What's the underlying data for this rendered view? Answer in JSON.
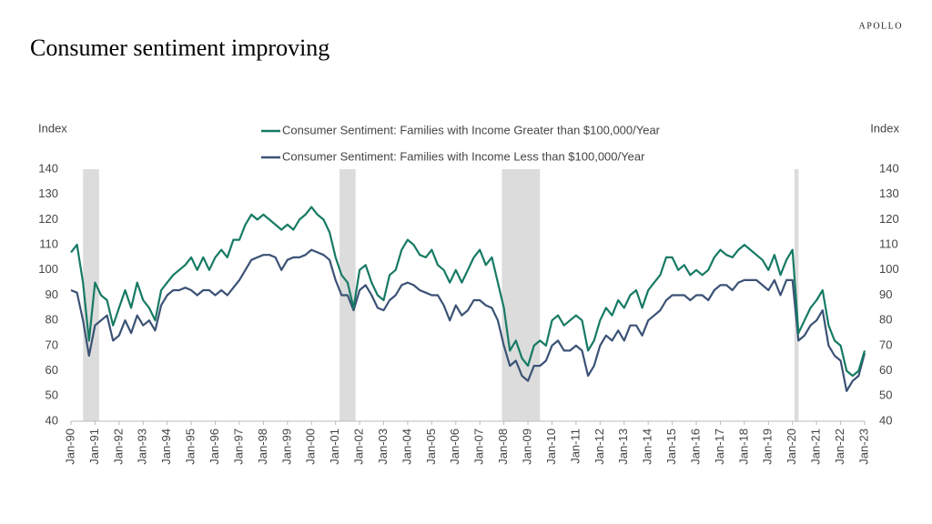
{
  "chart_data": {
    "type": "line",
    "title": "Consumer sentiment improving",
    "brand": "APOLLO",
    "y_label": "Index",
    "y2_label": "Index",
    "categories": [
      "Jan-90",
      null,
      null,
      null,
      "Jan-91",
      null,
      null,
      null,
      "Jan-92",
      null,
      null,
      null,
      "Jan-93",
      null,
      null,
      null,
      "Jan-94",
      null,
      null,
      null,
      "Jan-95",
      null,
      null,
      null,
      "Jan-96",
      null,
      null,
      null,
      "Jan-97",
      null,
      null,
      null,
      "Jan-98",
      null,
      null,
      null,
      "Jan-99",
      null,
      null,
      null,
      "Jan-00",
      null,
      null,
      null,
      "Jan-01",
      null,
      null,
      null,
      "Jan-02",
      null,
      null,
      null,
      "Jan-03",
      null,
      null,
      null,
      "Jan-04",
      null,
      null,
      null,
      "Jan-05",
      null,
      null,
      null,
      "Jan-06",
      null,
      null,
      null,
      "Jan-07",
      null,
      null,
      null,
      "Jan-08",
      null,
      null,
      null,
      "Jan-09",
      null,
      null,
      null,
      "Jan-10",
      null,
      null,
      null,
      "Jan-11",
      null,
      null,
      null,
      "Jan-12",
      null,
      null,
      null,
      "Jan-13",
      null,
      null,
      null,
      "Jan-14",
      null,
      null,
      null,
      "Jan-15",
      null,
      null,
      null,
      "Jan-16",
      null,
      null,
      null,
      "Jan-17",
      null,
      null,
      null,
      "Jan-18",
      null,
      null,
      null,
      "Jan-19",
      null,
      null,
      null,
      "Jan-20",
      null,
      null,
      null,
      "Jan-21",
      null,
      null,
      null,
      "Jan-22",
      null,
      null,
      null,
      "Jan-23"
    ],
    "series": [
      {
        "name": "Consumer Sentiment: Families with Income Greater than $100,000/Year",
        "color": "#167a64",
        "values": [
          107,
          110,
          95,
          72,
          95,
          90,
          88,
          78,
          85,
          92,
          85,
          95,
          88,
          85,
          80,
          92,
          95,
          98,
          100,
          102,
          105,
          100,
          105,
          100,
          105,
          108,
          105,
          112,
          112,
          118,
          122,
          120,
          122,
          120,
          118,
          116,
          118,
          116,
          120,
          122,
          125,
          122,
          120,
          115,
          105,
          98,
          95,
          85,
          100,
          102,
          95,
          90,
          88,
          98,
          100,
          108,
          112,
          110,
          106,
          105,
          108,
          102,
          100,
          95,
          100,
          95,
          100,
          105,
          108,
          102,
          105,
          95,
          85,
          68,
          72,
          65,
          62,
          70,
          72,
          70,
          80,
          82,
          78,
          80,
          82,
          80,
          68,
          72,
          80,
          85,
          82,
          88,
          85,
          90,
          92,
          85,
          92,
          95,
          98,
          105,
          105,
          100,
          102,
          98,
          100,
          98,
          100,
          105,
          108,
          106,
          105,
          108,
          110,
          108,
          106,
          104,
          100,
          106,
          98,
          104,
          108,
          75,
          80,
          85,
          88,
          92,
          78,
          72,
          70,
          60,
          58,
          60,
          68
        ]
      },
      {
        "name": "Consumer Sentiment: Families with Income Less than $100,000/Year",
        "color": "#3b5275",
        "values": [
          92,
          91,
          80,
          66,
          78,
          80,
          82,
          72,
          74,
          80,
          75,
          82,
          78,
          80,
          76,
          86,
          90,
          92,
          92,
          93,
          92,
          90,
          92,
          92,
          90,
          92,
          90,
          93,
          96,
          100,
          104,
          105,
          106,
          106,
          105,
          100,
          104,
          105,
          105,
          106,
          108,
          107,
          106,
          104,
          96,
          90,
          90,
          84,
          92,
          94,
          90,
          85,
          84,
          88,
          90,
          94,
          95,
          94,
          92,
          91,
          90,
          90,
          86,
          80,
          86,
          82,
          84,
          88,
          88,
          86,
          85,
          80,
          70,
          62,
          64,
          58,
          56,
          62,
          62,
          64,
          70,
          72,
          68,
          68,
          70,
          68,
          58,
          62,
          70,
          74,
          72,
          76,
          72,
          78,
          78,
          74,
          80,
          82,
          84,
          88,
          90,
          90,
          90,
          88,
          90,
          90,
          88,
          92,
          94,
          94,
          92,
          95,
          96,
          96,
          96,
          94,
          92,
          96,
          90,
          96,
          96,
          72,
          74,
          78,
          80,
          84,
          70,
          66,
          64,
          52,
          56,
          58,
          67
        ]
      }
    ],
    "recessions": [
      [
        2,
        4.67
      ],
      [
        44.67,
        47.33
      ],
      [
        71.67,
        78
      ],
      [
        120.33,
        121
      ]
    ],
    "ylim": [
      40,
      140
    ],
    "yticks": [
      40,
      50,
      60,
      70,
      80,
      90,
      100,
      110,
      120,
      130,
      140
    ],
    "y2lim": [
      40,
      140
    ],
    "y2ticks": [
      40,
      50,
      60,
      70,
      80,
      90,
      100,
      110,
      120,
      130,
      140
    ],
    "legend": "top"
  }
}
